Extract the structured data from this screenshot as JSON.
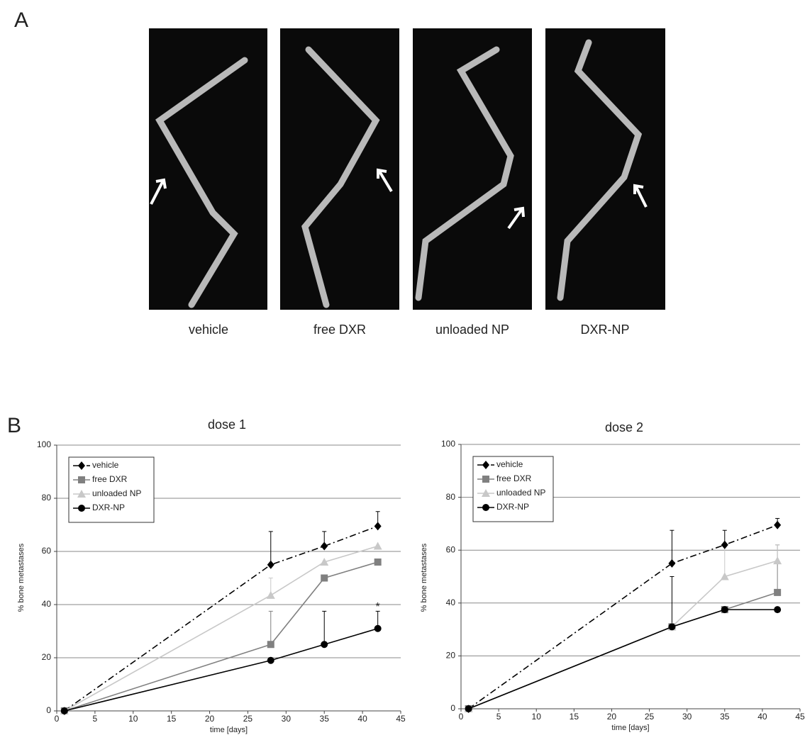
{
  "panel_a": {
    "label": "A",
    "captions": [
      "vehicle",
      "free DXR",
      "unloaded NP",
      "DXR-NP"
    ]
  },
  "panel_b": {
    "label": "B"
  },
  "chart_data": [
    {
      "type": "line",
      "title": "dose 1",
      "x_label": "time [days]",
      "y_label": "% bone metastases",
      "x": [
        1,
        28,
        35,
        42
      ],
      "xlim": [
        0,
        45
      ],
      "xticks": [
        0,
        5,
        10,
        15,
        20,
        25,
        30,
        35,
        40,
        45
      ],
      "ylim": [
        0,
        100
      ],
      "yticks": [
        0,
        20,
        40,
        60,
        80,
        100
      ],
      "grid": true,
      "legend": "upper left",
      "series": [
        {
          "name": "vehicle",
          "color": "#000000",
          "dash": "dashdot",
          "marker": "diamond",
          "values": [
            0,
            55,
            62,
            69.5
          ],
          "errors": [
            null,
            12.5,
            5.5,
            5.5
          ]
        },
        {
          "name": "free DXR",
          "color": "#808080",
          "dash": "solid",
          "marker": "square",
          "values": [
            0,
            25,
            50,
            56
          ],
          "errors": [
            null,
            12.5,
            null,
            null
          ]
        },
        {
          "name": "unloaded NP",
          "color": "#c8c8c8",
          "dash": "solid",
          "marker": "triangle",
          "values": [
            0,
            43.5,
            56,
            62
          ],
          "errors": [
            null,
            6.5,
            null,
            null
          ]
        },
        {
          "name": "DXR-NP",
          "color": "#000000",
          "dash": "solid",
          "marker": "circle",
          "values": [
            0,
            19,
            25,
            31
          ],
          "errors": [
            null,
            null,
            12.5,
            6.5
          ]
        }
      ],
      "annotations": [
        {
          "text": "*",
          "x": 42,
          "y": 39
        }
      ]
    },
    {
      "type": "line",
      "title": "dose 2",
      "x_label": "time [days]",
      "y_label": "% bone metastases",
      "x": [
        1,
        28,
        35,
        42
      ],
      "xlim": [
        0,
        45
      ],
      "xticks": [
        0,
        5,
        10,
        15,
        20,
        25,
        30,
        35,
        40,
        45
      ],
      "ylim": [
        0,
        100
      ],
      "yticks": [
        0,
        20,
        40,
        60,
        80,
        100
      ],
      "grid": true,
      "legend": "upper left",
      "series": [
        {
          "name": "vehicle",
          "color": "#000000",
          "dash": "dashdot",
          "marker": "diamond",
          "values": [
            0,
            55,
            62,
            69.5
          ],
          "errors": [
            null,
            12.5,
            5.5,
            2.5
          ]
        },
        {
          "name": "free DXR",
          "color": "#808080",
          "dash": "solid",
          "marker": "square",
          "values": [
            0,
            31,
            37.5,
            44
          ],
          "errors": [
            null,
            null,
            null,
            18
          ]
        },
        {
          "name": "unloaded NP",
          "color": "#c8c8c8",
          "dash": "solid",
          "marker": "triangle",
          "values": [
            0,
            31,
            50,
            56
          ],
          "errors": [
            null,
            null,
            12,
            6
          ]
        },
        {
          "name": "DXR-NP",
          "color": "#000000",
          "dash": "solid",
          "marker": "circle",
          "values": [
            0,
            31,
            37.5,
            37.5
          ],
          "errors": [
            null,
            19,
            null,
            null
          ]
        }
      ]
    }
  ]
}
